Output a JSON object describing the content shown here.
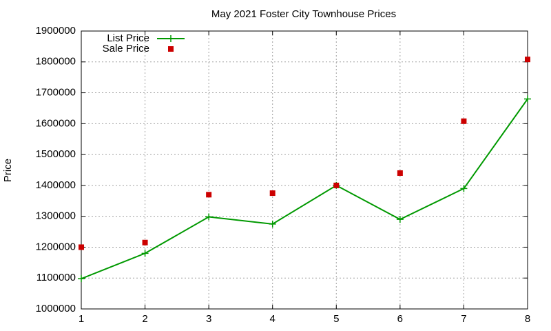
{
  "chart_data": {
    "type": "line",
    "title": "May 2021 Foster City Townhouse Prices",
    "y_label": "Price",
    "x": [
      1,
      2,
      3,
      4,
      5,
      6,
      7,
      8
    ],
    "series": [
      {
        "name": "List Price",
        "color": "#009900",
        "mode": "lines+points",
        "marker": "plus",
        "values": [
          1098000,
          1180000,
          1298000,
          1275000,
          1400000,
          1290000,
          1390000,
          1680000
        ]
      },
      {
        "name": "Sale Price",
        "color": "#cc0000",
        "mode": "points",
        "marker": "square",
        "values": [
          1200000,
          1215000,
          1370000,
          1375000,
          1400000,
          1440000,
          1608000,
          1808000
        ]
      }
    ],
    "xlim": [
      1,
      8
    ],
    "xticks": [
      1,
      2,
      3,
      4,
      5,
      6,
      7,
      8
    ],
    "ylim": [
      1000000,
      1900000
    ],
    "yticks": [
      1000000,
      1100000,
      1200000,
      1300000,
      1400000,
      1500000,
      1600000,
      1700000,
      1800000,
      1900000
    ],
    "grid": true,
    "legend": "top-left"
  }
}
